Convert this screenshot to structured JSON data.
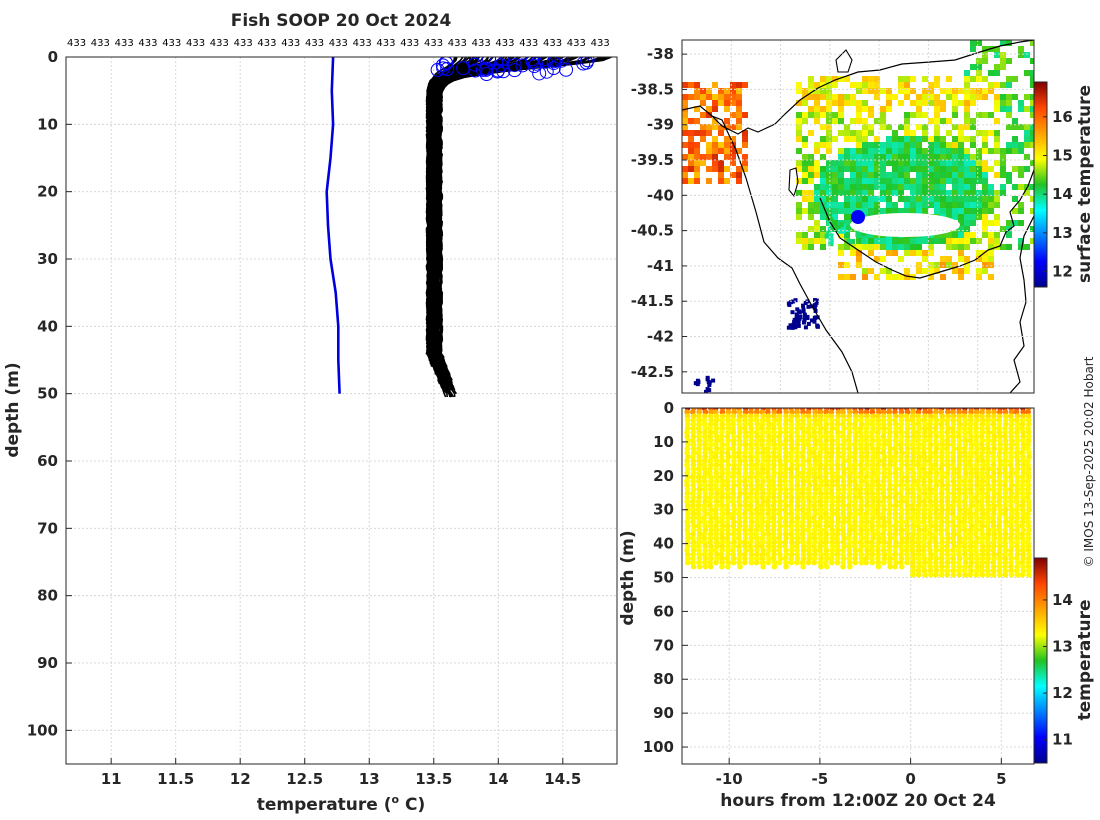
{
  "title": "Fish SOOP 20 Oct 2024",
  "credit": "© IMOS 13-Sep-2025 20:02 Hobart",
  "colors": {
    "profile_line": "#0000dd",
    "cast_lines": "#000000",
    "surface_markers": "#0000ff",
    "grid": "#d8d8d8",
    "axis": "#262626"
  },
  "chart_data": [
    {
      "id": "profile",
      "type": "line",
      "title": "Fish SOOP 20 Oct 2024",
      "xlabel": "temperature (",
      "xlabel_sup": "o",
      "xlabel_tail": " C)",
      "ylabel": "depth (m)",
      "xlim": [
        10.65,
        14.92
      ],
      "ylim": [
        0,
        105
      ],
      "y_reversed": true,
      "grid": true,
      "x_ticks": [
        11,
        11.5,
        12,
        12.5,
        13,
        13.5,
        14,
        14.5
      ],
      "x_tick_labels": [
        "11",
        "11.5",
        "12",
        "12.5",
        "13",
        "13.5",
        "14",
        "14.5"
      ],
      "y_ticks": [
        0,
        10,
        20,
        30,
        40,
        50,
        60,
        70,
        80,
        90,
        100
      ],
      "y_tick_labels": [
        "0",
        "10",
        "20",
        "30",
        "40",
        "50",
        "60",
        "70",
        "80",
        "90",
        "100"
      ],
      "top_label_text": "433",
      "top_label_count": 23,
      "series": [
        {
          "name": "mean profile",
          "color": "#0000dd",
          "points": [
            [
              12.72,
              0
            ],
            [
              12.71,
              5
            ],
            [
              12.72,
              10
            ],
            [
              12.7,
              15
            ],
            [
              12.67,
              20
            ],
            [
              12.68,
              25
            ],
            [
              12.7,
              30
            ],
            [
              12.74,
              35
            ],
            [
              12.76,
              40
            ],
            [
              12.76,
              45
            ],
            [
              12.77,
              50
            ]
          ]
        }
      ],
      "casts": {
        "count": 60,
        "color": "#000000",
        "mixed_layer_temp_range": [
          13.45,
          13.56
        ],
        "surface_temp_range": [
          13.6,
          14.92
        ],
        "bottom_depth_range": [
          46,
          51
        ]
      },
      "surface_markers": {
        "count": 40,
        "color": "#0000ff",
        "temp_range": [
          13.5,
          14.7
        ],
        "depth_range": [
          0.3,
          2.6
        ]
      }
    },
    {
      "id": "map",
      "type": "heatmap",
      "y_ticks": [
        -38,
        -38.5,
        -39,
        -39.5,
        -40,
        -40.5,
        -41,
        -41.5,
        -42,
        -42.5
      ],
      "y_tick_labels": [
        "-38",
        "-38.5",
        "-39",
        "-39.5",
        "-40",
        "-40.5",
        "-41",
        "-41.5",
        "-42",
        "-42.5"
      ],
      "x_range": [
        143.7,
        148.6
      ],
      "ylim": [
        -42.8,
        -37.8
      ],
      "vessel_position": {
        "lon": 145.2,
        "lat": -40.3,
        "color": "#0000ff"
      },
      "colorbar": {
        "label": "surface temperature",
        "range": [
          11.6,
          16.9
        ],
        "ticks": [
          12,
          13,
          14,
          15,
          16
        ],
        "tick_labels": [
          "12",
          "13",
          "14",
          "15",
          "16"
        ]
      }
    },
    {
      "id": "section",
      "type": "scatter",
      "xlabel": "hours from 12:00Z 20 Oct 24",
      "ylabel": "depth (m)",
      "xlim": [
        -12.6,
        6.8
      ],
      "ylim": [
        0,
        105
      ],
      "y_reversed": true,
      "x_ticks": [
        -10,
        -5,
        0,
        5
      ],
      "x_tick_labels": [
        "-10",
        "-5",
        "0",
        "5"
      ],
      "y_ticks": [
        0,
        10,
        20,
        30,
        40,
        50,
        60,
        70,
        80,
        90,
        100
      ],
      "y_tick_labels": [
        "0",
        "10",
        "20",
        "30",
        "40",
        "50",
        "60",
        "70",
        "80",
        "90",
        "100"
      ],
      "profile_time_range": [
        -12.3,
        6.5
      ],
      "profile_count": 60,
      "bottom_depth_range": [
        46,
        50
      ],
      "colorbar": {
        "label": "temperature",
        "range": [
          10.5,
          14.9
        ],
        "ticks": [
          11,
          12,
          13,
          14
        ],
        "tick_labels": [
          "11",
          "12",
          "13",
          "14"
        ]
      }
    }
  ]
}
